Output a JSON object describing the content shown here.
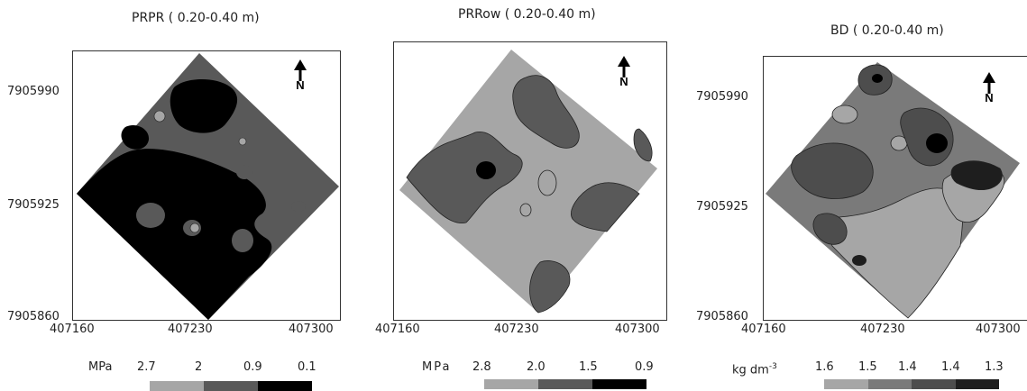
{
  "panels": [
    {
      "title": "PRPR ( 0.20-0.40 m)",
      "y_ticks": [
        "7905990",
        "7905925",
        "7905860"
      ],
      "x_ticks": [
        "407160",
        "407230",
        "407300"
      ],
      "legend": {
        "unit": "MPa",
        "unit_sup": "",
        "values": [
          "2.7",
          "2",
          "0.9",
          "0.1"
        ]
      },
      "colors": [
        "#a6a6a6",
        "#595959",
        "#000000"
      ]
    },
    {
      "title": "PRRow ( 0.20-0.40 m)",
      "y_ticks": [],
      "x_ticks": [
        "407160",
        "407230",
        "407300"
      ],
      "legend": {
        "unit": "MPa",
        "unit_sup": "",
        "values": [
          "2.8",
          "2.0",
          "1.5",
          "0.9"
        ]
      },
      "colors": [
        "#a6a6a6",
        "#595959",
        "#000000"
      ]
    },
    {
      "title": "BD ( 0.20-0.40 m)",
      "y_ticks": [
        "7905990",
        "7905925",
        "7905860"
      ],
      "x_ticks": [
        "407160",
        "407230",
        "407300"
      ],
      "legend": {
        "unit": "kg dm",
        "unit_sup": "-3",
        "values": [
          "1.6",
          "1.5",
          "1.4",
          "1.4",
          "1.3"
        ]
      },
      "colors": [
        "#a6a6a6",
        "#7a7a7a",
        "#4d4d4d",
        "#1e1e1e"
      ]
    }
  ],
  "north_label": "N"
}
